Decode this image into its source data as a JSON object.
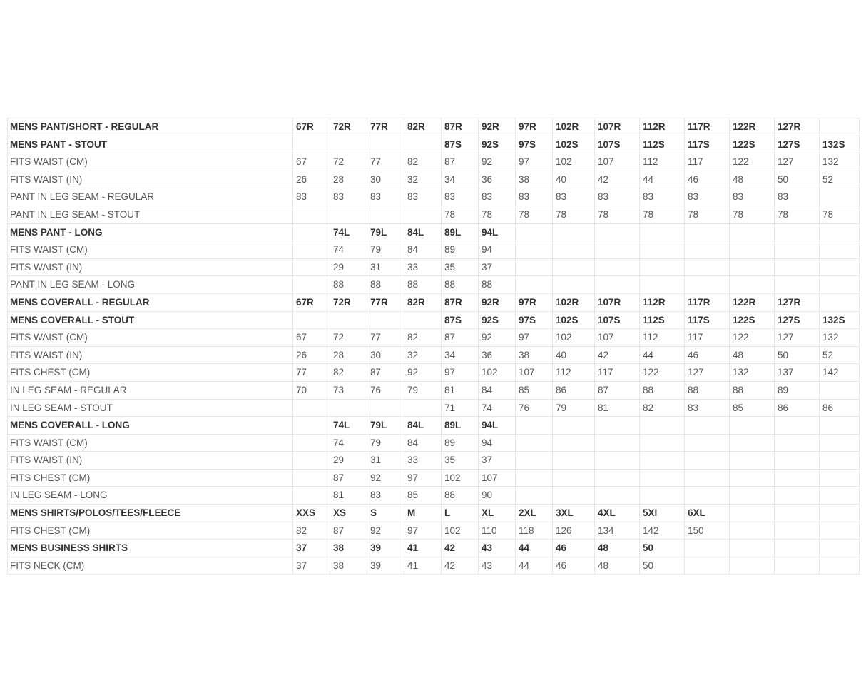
{
  "colors": {
    "background": "#ffffff",
    "border": "#e7e7e7",
    "text_regular": "#555555",
    "text_bold": "#333333"
  },
  "table": {
    "name": "mens-size-chart",
    "column_count": 14,
    "rows": [
      {
        "label": "MENS PANT/SHORT - REGULAR",
        "bold": true,
        "values": [
          "67R",
          "72R",
          "77R",
          "82R",
          "87R",
          "92R",
          "97R",
          "102R",
          "107R",
          "112R",
          "117R",
          "122R",
          "127R",
          ""
        ]
      },
      {
        "label": "MENS PANT - STOUT",
        "bold": true,
        "values": [
          "",
          "",
          "",
          "",
          "87S",
          "92S",
          "97S",
          "102S",
          "107S",
          "112S",
          "117S",
          "122S",
          "127S",
          "132S"
        ]
      },
      {
        "label": "FITS WAIST (CM)",
        "bold": false,
        "values": [
          "67",
          "72",
          "77",
          "82",
          "87",
          "92",
          "97",
          "102",
          "107",
          "112",
          "117",
          "122",
          "127",
          "132"
        ]
      },
      {
        "label": "FITS WAIST (IN)",
        "bold": false,
        "values": [
          "26",
          "28",
          "30",
          "32",
          "34",
          "36",
          "38",
          "40",
          "42",
          "44",
          "46",
          "48",
          "50",
          "52"
        ]
      },
      {
        "label": "PANT IN LEG SEAM - REGULAR",
        "bold": false,
        "values": [
          "83",
          "83",
          "83",
          "83",
          "83",
          "83",
          "83",
          "83",
          "83",
          "83",
          "83",
          "83",
          "83",
          ""
        ]
      },
      {
        "label": "PANT IN LEG SEAM - STOUT",
        "bold": false,
        "values": [
          "",
          "",
          "",
          "",
          "78",
          "78",
          "78",
          "78",
          "78",
          "78",
          "78",
          "78",
          "78",
          "78"
        ]
      },
      {
        "label": "MENS PANT - LONG",
        "bold": true,
        "values": [
          "",
          "74L",
          "79L",
          "84L",
          "89L",
          "94L",
          "",
          "",
          "",
          "",
          "",
          "",
          "",
          ""
        ]
      },
      {
        "label": "FITS WAIST (CM)",
        "bold": false,
        "values": [
          "",
          "74",
          "79",
          "84",
          "89",
          "94",
          "",
          "",
          "",
          "",
          "",
          "",
          "",
          ""
        ]
      },
      {
        "label": "FITS WAIST (IN)",
        "bold": false,
        "values": [
          "",
          "29",
          "31",
          "33",
          "35",
          "37",
          "",
          "",
          "",
          "",
          "",
          "",
          "",
          ""
        ]
      },
      {
        "label": "PANT IN LEG SEAM - LONG",
        "bold": false,
        "values": [
          "",
          "88",
          "88",
          "88",
          "88",
          "88",
          "",
          "",
          "",
          "",
          "",
          "",
          "",
          ""
        ]
      },
      {
        "label": "MENS COVERALL - REGULAR",
        "bold": true,
        "values": [
          "67R",
          "72R",
          "77R",
          "82R",
          "87R",
          "92R",
          "97R",
          "102R",
          "107R",
          "112R",
          "117R",
          "122R",
          "127R",
          ""
        ]
      },
      {
        "label": "MENS COVERALL - STOUT",
        "bold": true,
        "values": [
          "",
          "",
          "",
          "",
          "87S",
          "92S",
          "97S",
          "102S",
          "107S",
          "112S",
          "117S",
          "122S",
          "127S",
          "132S"
        ]
      },
      {
        "label": "FITS WAIST (CM)",
        "bold": false,
        "values": [
          "67",
          "72",
          "77",
          "82",
          "87",
          "92",
          "97",
          "102",
          "107",
          "112",
          "117",
          "122",
          "127",
          "132"
        ]
      },
      {
        "label": "FITS WAIST (IN)",
        "bold": false,
        "values": [
          "26",
          "28",
          "30",
          "32",
          "34",
          "36",
          "38",
          "40",
          "42",
          "44",
          "46",
          "48",
          "50",
          "52"
        ]
      },
      {
        "label": "FITS CHEST (CM)",
        "bold": false,
        "values": [
          "77",
          "82",
          "87",
          "92",
          "97",
          "102",
          "107",
          "112",
          "117",
          "122",
          "127",
          "132",
          "137",
          "142"
        ]
      },
      {
        "label": "IN LEG SEAM - REGULAR",
        "bold": false,
        "values": [
          "70",
          "73",
          "76",
          "79",
          "81",
          "84",
          "85",
          "86",
          "87",
          "88",
          "88",
          "88",
          "89",
          ""
        ]
      },
      {
        "label": "IN LEG SEAM - STOUT",
        "bold": false,
        "values": [
          "",
          "",
          "",
          "",
          "71",
          "74",
          "76",
          "79",
          "81",
          "82",
          "83",
          "85",
          "86",
          "86"
        ]
      },
      {
        "label": "MENS COVERALL - LONG",
        "bold": true,
        "values": [
          "",
          "74L",
          "79L",
          "84L",
          "89L",
          "94L",
          "",
          "",
          "",
          "",
          "",
          "",
          "",
          ""
        ]
      },
      {
        "label": "FITS WAIST (CM)",
        "bold": false,
        "values": [
          "",
          "74",
          "79",
          "84",
          "89",
          "94",
          "",
          "",
          "",
          "",
          "",
          "",
          "",
          ""
        ]
      },
      {
        "label": "FITS WAIST (IN)",
        "bold": false,
        "values": [
          "",
          "29",
          "31",
          "33",
          "35",
          "37",
          "",
          "",
          "",
          "",
          "",
          "",
          "",
          ""
        ]
      },
      {
        "label": "FITS CHEST (CM)",
        "bold": false,
        "values": [
          "",
          "87",
          "92",
          "97",
          "102",
          "107",
          "",
          "",
          "",
          "",
          "",
          "",
          "",
          ""
        ]
      },
      {
        "label": "IN LEG SEAM - LONG",
        "bold": false,
        "values": [
          "",
          "81",
          "83",
          "85",
          "88",
          "90",
          "",
          "",
          "",
          "",
          "",
          "",
          "",
          ""
        ]
      },
      {
        "label": "MENS SHIRTS/POLOS/TEES/FLEECE",
        "bold": true,
        "values": [
          "XXS",
          "XS",
          "S",
          "M",
          "L",
          "XL",
          "2XL",
          "3XL",
          "4XL",
          "5XI",
          "6XL",
          "",
          "",
          ""
        ]
      },
      {
        "label": "FITS CHEST (CM)",
        "bold": false,
        "values": [
          "82",
          "87",
          "92",
          "97",
          "102",
          "110",
          "118",
          "126",
          "134",
          "142",
          "150",
          "",
          "",
          ""
        ]
      },
      {
        "label": "MENS BUSINESS SHIRTS",
        "bold": true,
        "values": [
          "37",
          "38",
          "39",
          "41",
          "42",
          "43",
          "44",
          "46",
          "48",
          "50",
          "",
          "",
          "",
          ""
        ]
      },
      {
        "label": "FITS NECK (CM)",
        "bold": false,
        "values": [
          "37",
          "38",
          "39",
          "41",
          "42",
          "43",
          "44",
          "46",
          "48",
          "50",
          "",
          "",
          "",
          ""
        ]
      }
    ]
  }
}
